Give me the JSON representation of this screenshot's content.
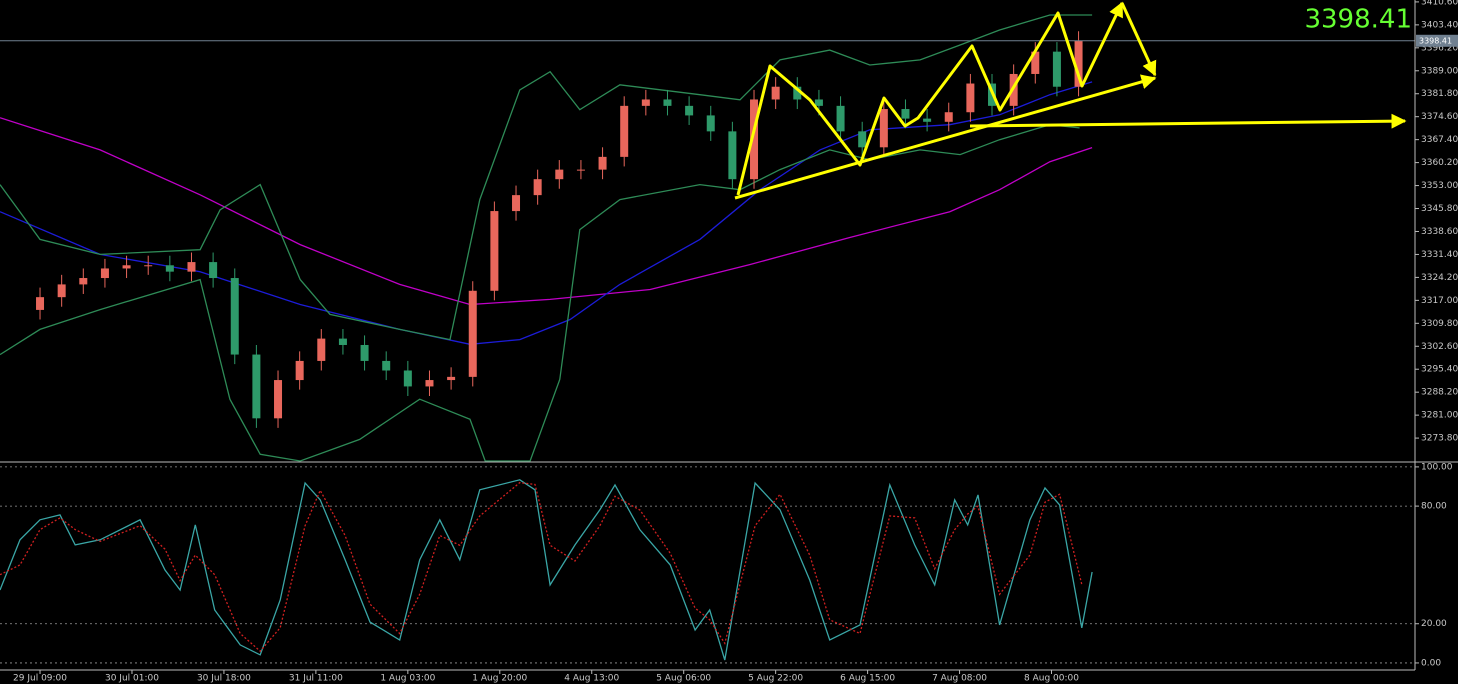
{
  "chart_data": [
    {
      "type": "candlestick",
      "xlim": [
        -7.4,
        254.2
      ],
      "ylim": [
        3266.3,
        3411.2
      ],
      "yticks": [
        {
          "value": 3410.6,
          "label": "3410.60"
        },
        {
          "value": 3403.4,
          "label": "3403.40"
        },
        {
          "value": 3396.2,
          "label": "3396.20"
        },
        {
          "value": 3389,
          "label": "3389.00"
        },
        {
          "value": 3381.8,
          "label": "3381.80"
        },
        {
          "value": 3374.6,
          "label": "3374.60"
        },
        {
          "value": 3367.4,
          "label": "3367.40"
        },
        {
          "value": 3360.2,
          "label": "3360.20"
        },
        {
          "value": 3353,
          "label": "3353.00"
        },
        {
          "value": 3345.8,
          "label": "3345.80"
        },
        {
          "value": 3338.6,
          "label": "3338.60"
        },
        {
          "value": 3331.4,
          "label": "3331.40"
        },
        {
          "value": 3324.2,
          "label": "3324.20"
        },
        {
          "value": 3317,
          "label": "3317.00"
        },
        {
          "value": 3309.8,
          "label": "3309.80"
        },
        {
          "value": 3302.6,
          "label": "3302.60"
        },
        {
          "value": 3295.4,
          "label": "3295.40"
        },
        {
          "value": 3288.2,
          "label": "3288.20"
        },
        {
          "value": 3281,
          "label": "3281.00"
        },
        {
          "value": 3273.8,
          "label": "3273.80"
        }
      ],
      "last_price": 3398.41,
      "up_color": "#e8675c",
      "down_color": "#2e9a6a",
      "x": [
        0,
        4,
        8,
        12,
        16,
        20,
        24,
        28,
        32,
        36,
        40,
        44,
        48,
        52,
        56,
        60,
        64,
        68,
        72,
        76,
        80,
        84,
        88,
        92,
        96,
        100,
        104,
        108,
        112,
        116,
        120,
        124,
        128,
        132,
        136,
        140,
        144,
        148,
        152,
        156,
        160,
        164,
        168,
        172,
        176,
        180,
        184,
        188,
        192
      ],
      "open": [
        3314,
        3318,
        3322,
        3324,
        3327,
        3328,
        3328,
        3326,
        3329,
        3324,
        3300,
        3280,
        3292,
        3298,
        3305,
        3303,
        3298,
        3295,
        3290,
        3292,
        3293,
        3320,
        3345,
        3350,
        3355,
        3358,
        3358,
        3362,
        3378,
        3380,
        3378,
        3375,
        3370,
        3355,
        3380,
        3384,
        3380,
        3378,
        3370,
        3365,
        3377,
        3374,
        3373,
        3376,
        3385,
        3378,
        3388,
        3395,
        3384
      ],
      "high": [
        3321,
        3325,
        3327,
        3330,
        3331,
        3331,
        3331,
        3332,
        3332,
        3327,
        3303,
        3295,
        3301,
        3308,
        3308,
        3306,
        3301,
        3298,
        3295,
        3296,
        3323,
        3348,
        3353,
        3358,
        3361,
        3361,
        3365,
        3381,
        3383,
        3383,
        3381,
        3378,
        3373,
        3383,
        3387,
        3387,
        3383,
        3381,
        3373,
        3380,
        3380,
        3377,
        3379,
        3388,
        3388,
        3391,
        3398,
        3398,
        3401.4
      ],
      "low": [
        3311,
        3315,
        3319,
        3321,
        3324,
        3325,
        3323,
        3323,
        3321,
        3297,
        3277,
        3277,
        3289,
        3295,
        3300,
        3295,
        3292,
        3287,
        3287,
        3289,
        3290,
        3317,
        3342,
        3347,
        3352,
        3355,
        3355,
        3359,
        3375,
        3375,
        3372,
        3367,
        3352,
        3352,
        3377,
        3377,
        3375,
        3367,
        3362,
        3362,
        3371,
        3370,
        3370,
        3373,
        3375,
        3375,
        3385,
        3381,
        3381
      ],
      "close": [
        3318,
        3322,
        3324,
        3327,
        3328,
        3328,
        3326,
        3329,
        3324,
        3300,
        3280,
        3292,
        3298,
        3305,
        3303,
        3298,
        3295,
        3290,
        3292,
        3293,
        3320,
        3345,
        3350,
        3355,
        3358,
        3358,
        3362,
        3378,
        3380,
        3378,
        3375,
        3370,
        3355,
        3380,
        3384,
        3380,
        3378,
        3370,
        3365,
        3377,
        3374,
        3373,
        3376,
        3385,
        3378,
        3388,
        3395,
        3384,
        3398.41
      ],
      "series": [
        {
          "color": "#c000c8",
          "x": [
            -7.4,
            11.1,
            29.6,
            48.1,
            66.5,
            79.5,
            94.3,
            112.8,
            131.2,
            149.7,
            168.2,
            177.4,
            186.7,
            194.5
          ],
          "values": [
            3374.3,
            3364.2,
            3350.1,
            3334.5,
            3322.0,
            3315.7,
            3317.3,
            3320.4,
            3328.2,
            3336.7,
            3344.8,
            3351.7,
            3360.5,
            3364.9
          ]
        },
        {
          "color": "#1c1cd8",
          "x": [
            -7.4,
            11.1,
            29.6,
            48.1,
            66.5,
            79.5,
            88.7,
            98.0,
            107.2,
            122.0,
            133.1,
            144.2,
            153.4,
            168.2,
            177.4,
            186.7,
            194.5
          ],
          "values": [
            3344.8,
            3331.4,
            3326.0,
            3315.7,
            3307.9,
            3303.2,
            3304.7,
            3311.0,
            3322.0,
            3336.1,
            3351.7,
            3364.2,
            3370.5,
            3372.1,
            3375.2,
            3381.5,
            3385.5
          ]
        },
        {
          "color": "#2e8b57",
          "x": [
            -7.4,
            0,
            11.1,
            29.6,
            33.3,
            40.7,
            48.1,
            53.6,
            66.5,
            75.8,
            81.3,
            88.7,
            94.3,
            99.8,
            107.2,
            122.0,
            129.4,
            136.8,
            146.0,
            153.4,
            162.7,
            170.1,
            177.4,
            186.7,
            194.5
          ],
          "values": [
            3353.3,
            3336.1,
            3331.4,
            3332.9,
            3345.4,
            3353.3,
            3323.5,
            3312.6,
            3307.9,
            3304.7,
            3348.6,
            3383.0,
            3388.7,
            3376.8,
            3384.6,
            3381.5,
            3379.9,
            3392.4,
            3395.5,
            3390.8,
            3392.4,
            3397.1,
            3401.8,
            3406.5,
            3406.5
          ]
        },
        {
          "color": "#2e8b57",
          "x": [
            -7.4,
            0,
            11.1,
            29.6,
            35.1,
            40.7,
            48.1,
            59.1,
            70.2,
            79.5,
            82.3,
            90.6,
            96.1,
            99.8,
            107.2,
            122.0,
            129.4,
            136.8,
            146.0,
            153.4,
            162.7,
            170.1,
            177.4,
            186.7,
            192.2
          ],
          "values": [
            3300.0,
            3307.9,
            3314.1,
            3323.5,
            3286.0,
            3268.7,
            3266.6,
            3273.4,
            3286.0,
            3279.7,
            3266.6,
            3266.6,
            3292.2,
            3339.2,
            3348.6,
            3353.3,
            3351.7,
            3358.0,
            3364.2,
            3361.1,
            3364.2,
            3362.7,
            3367.4,
            3372.1,
            3371.1
          ]
        }
      ]
    },
    {
      "type": "line",
      "xlim": [
        -7.4,
        254.2
      ],
      "ylim": [
        -3.6,
        102.5
      ],
      "yticks": [
        {
          "value": 100,
          "label": "100.00"
        },
        {
          "value": 80,
          "label": "80.00"
        },
        {
          "value": 20,
          "label": "20.00"
        },
        {
          "value": 0,
          "label": "0.00"
        }
      ],
      "grid": true,
      "xticks": [
        {
          "value": 0,
          "label": "29 Jul 09:00"
        },
        {
          "value": 17,
          "label": "30 Jul 01:00"
        },
        {
          "value": 34,
          "label": "30 Jul 18:00"
        },
        {
          "value": 51,
          "label": "31 Jul 11:00"
        },
        {
          "value": 68,
          "label": "1 Aug 03:00"
        },
        {
          "value": 85,
          "label": "1 Aug 20:00"
        },
        {
          "value": 102,
          "label": "4 Aug 13:00"
        },
        {
          "value": 119,
          "label": "5 Aug 06:00"
        },
        {
          "value": 136,
          "label": "5 Aug 22:00"
        },
        {
          "value": 153,
          "label": "6 Aug 15:00"
        },
        {
          "value": 170,
          "label": "7 Aug 08:00"
        },
        {
          "value": 187,
          "label": "8 Aug 00:00"
        }
      ],
      "series": [
        {
          "color": "#3aa6a6",
          "x": [
            -7.4,
            -3.7,
            0,
            3.7,
            6.5,
            11.1,
            18.5,
            23.1,
            25.9,
            28.7,
            32.3,
            37.0,
            40.7,
            44.4,
            49.0,
            51.8,
            56.4,
            61.0,
            66.5,
            70.2,
            73.9,
            77.6,
            81.3,
            88.7,
            91.5,
            94.3,
            98.9,
            103.5,
            106.3,
            110.9,
            116.5,
            121.1,
            123.8,
            126.6,
            132.2,
            136.8,
            142.3,
            146.0,
            151.6,
            157.1,
            161.7,
            165.4,
            169.1,
            171.5,
            173.4,
            177.4,
            183.0,
            185.8,
            188.5,
            192.6,
            194.5
          ],
          "values": [
            37.2,
            62.8,
            73.0,
            75.5,
            60.2,
            62.8,
            73.0,
            47.4,
            37.2,
            70.4,
            27.0,
            9.2,
            4.1,
            32.1,
            91.8,
            83.2,
            52.6,
            20.9,
            11.7,
            52.6,
            73.0,
            52.6,
            88.3,
            93.4,
            88.3,
            39.8,
            60.2,
            78.1,
            90.8,
            67.9,
            50.0,
            16.8,
            27.0,
            1.5,
            91.8,
            78.1,
            42.3,
            11.7,
            19.4,
            90.8,
            60.2,
            39.8,
            83.2,
            70.4,
            85.7,
            19.4,
            73.0,
            89.3,
            80.6,
            17.9,
            46.4
          ]
        },
        {
          "color": "#d02020",
          "dashed": true,
          "x": [
            -7.4,
            -3.7,
            0,
            3.7,
            6.5,
            11.1,
            18.5,
            23.1,
            25.9,
            28.7,
            32.3,
            37.0,
            40.7,
            44.4,
            49.0,
            51.8,
            56.4,
            61.0,
            66.5,
            70.2,
            73.9,
            77.6,
            81.3,
            88.7,
            91.5,
            94.3,
            98.9,
            103.5,
            106.3,
            110.9,
            116.5,
            121.1,
            123.8,
            126.6,
            132.2,
            136.8,
            142.3,
            146.0,
            151.6,
            157.1,
            161.7,
            165.4,
            169.1,
            171.5,
            173.4,
            177.4,
            183.0,
            185.8,
            188.5,
            192.6
          ],
          "values": [
            45,
            50,
            68,
            74,
            68,
            62,
            70,
            58,
            42,
            55,
            45,
            15,
            6,
            18,
            70,
            88,
            65,
            30,
            15,
            35,
            65,
            60,
            75,
            92,
            91,
            60,
            52,
            70,
            85,
            78,
            56,
            28,
            22,
            10,
            70,
            86,
            55,
            22,
            15,
            75,
            74,
            48,
            68,
            76,
            80,
            35,
            55,
            82,
            86,
            40
          ]
        }
      ]
    }
  ]
}
